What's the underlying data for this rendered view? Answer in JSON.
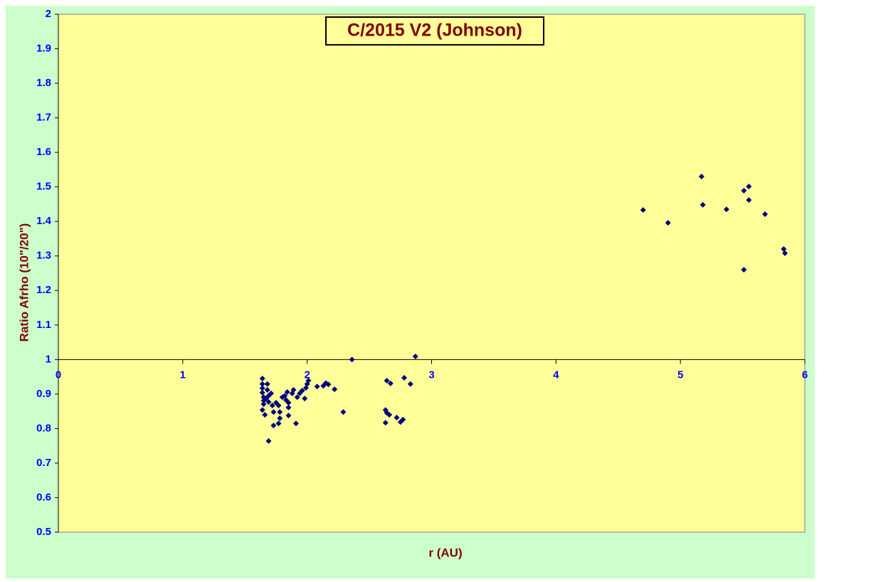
{
  "chart_data": {
    "type": "scatter",
    "title": "C/2015 V2 (Johnson)",
    "x_label": "r (AU)",
    "y_label": "Ratio Afrho (10\"/20\")",
    "color": "#000080",
    "xlim": [
      0,
      6
    ],
    "xticks": [
      0,
      1,
      2,
      3,
      4,
      5,
      6
    ],
    "ylim": [
      0.5,
      2
    ],
    "yticks": [
      0.5,
      0.6,
      0.7,
      0.8,
      0.9,
      1,
      1.1,
      1.2,
      1.3,
      1.4,
      1.5,
      1.6,
      1.7,
      1.8,
      1.9,
      2
    ],
    "x_axis_crosses": 1,
    "x": [
      4.7,
      4.9,
      5.17,
      5.18,
      5.37,
      5.51,
      5.55,
      5.55,
      5.68,
      5.51,
      5.83,
      5.84,
      2.36,
      2.87,
      2.29,
      2.64,
      2.67,
      2.78,
      2.83,
      2.63,
      2.64,
      2.66,
      2.63,
      2.72,
      2.75,
      2.77,
      1.64,
      1.64,
      1.64,
      1.64,
      1.65,
      1.65,
      1.65,
      1.64,
      1.66,
      1.68,
      1.69,
      1.69,
      1.69,
      1.71,
      1.72,
      1.73,
      1.73,
      1.75,
      1.77,
      1.77,
      1.78,
      1.78,
      1.8,
      1.82,
      1.83,
      1.84,
      1.85,
      1.85,
      1.85,
      1.88,
      1.89,
      1.91,
      1.92,
      1.94,
      1.96,
      1.98,
      1.99,
      2.0,
      2.01,
      2.08,
      2.13,
      2.15,
      2.17,
      2.22,
      1.68,
      1.67
    ],
    "values": [
      1.433,
      1.396,
      1.53,
      1.448,
      1.435,
      1.489,
      1.501,
      1.462,
      1.421,
      1.26,
      1.32,
      1.308,
      1.0,
      1.009,
      0.848,
      0.939,
      0.931,
      0.947,
      0.929,
      0.854,
      0.846,
      0.84,
      0.817,
      0.832,
      0.819,
      0.826,
      0.945,
      0.929,
      0.917,
      0.904,
      0.891,
      0.881,
      0.871,
      0.854,
      0.84,
      0.912,
      0.895,
      0.877,
      0.764,
      0.902,
      0.867,
      0.848,
      0.809,
      0.875,
      0.867,
      0.815,
      0.848,
      0.83,
      0.891,
      0.895,
      0.883,
      0.906,
      0.875,
      0.861,
      0.838,
      0.902,
      0.912,
      0.815,
      0.891,
      0.902,
      0.91,
      0.887,
      0.918,
      0.929,
      0.939,
      0.922,
      0.924,
      0.932,
      0.928,
      0.914,
      0.929,
      0.887
    ]
  }
}
